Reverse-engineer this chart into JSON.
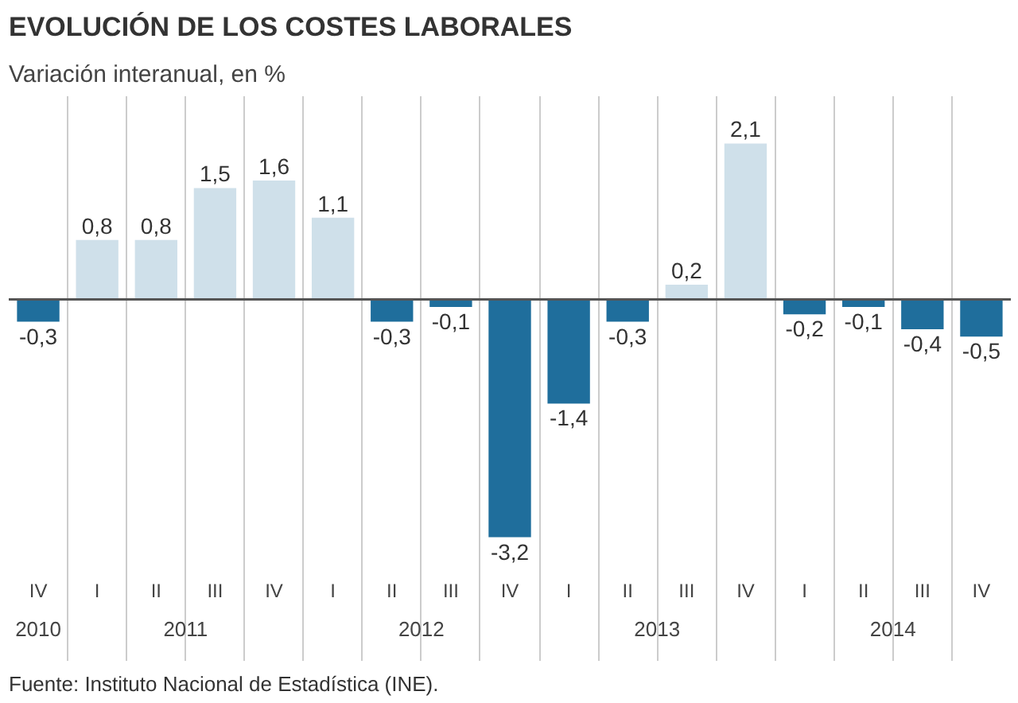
{
  "chart_data": {
    "type": "bar",
    "title": "EVOLUCIÓN DE LOS COSTES LABORALES",
    "subtitle": "Variación interanual, en %",
    "categories": [
      "IV",
      "I",
      "II",
      "III",
      "IV",
      "I",
      "II",
      "III",
      "IV",
      "I",
      "II",
      "III",
      "IV",
      "I",
      "II",
      "III",
      "IV"
    ],
    "values": [
      -0.3,
      0.8,
      0.8,
      1.5,
      1.6,
      1.1,
      -0.3,
      -0.1,
      -3.2,
      -1.4,
      -0.3,
      0.2,
      2.1,
      -0.2,
      -0.1,
      -0.4,
      -0.5
    ],
    "value_labels": [
      "-0,3",
      "0,8",
      "0,8",
      "1,5",
      "1,6",
      "1,1",
      "-0,3",
      "-0,1",
      "-3,2",
      "-1,4",
      "-0,3",
      "0,2",
      "2,1",
      "-0,2",
      "-0,1",
      "-0,4",
      "-0,5"
    ],
    "colors": [
      "#1f6e9c",
      "#cfe0ea",
      "#cfe0ea",
      "#cfe0ea",
      "#cfe0ea",
      "#cfe0ea",
      "#1f6e9c",
      "#1f6e9c",
      "#1f6e9c",
      "#1f6e9c",
      "#1f6e9c",
      "#cfe0ea",
      "#cfe0ea",
      "#1f6e9c",
      "#1f6e9c",
      "#1f6e9c",
      "#1f6e9c"
    ],
    "annotations": [
      "2010",
      "2011",
      "2012",
      "2013",
      "2014",
      "Fuente: Instituto Nacional de Estadística (INE)."
    ],
    "grid": "x"
  }
}
